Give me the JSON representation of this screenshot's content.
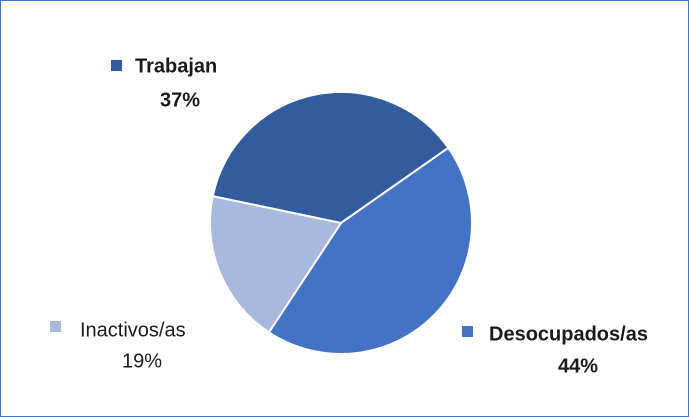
{
  "chart_data": {
    "type": "pie",
    "categories": [
      "Trabajan",
      "Desocupados/as",
      "Inactivos/as"
    ],
    "values": [
      37,
      44,
      19
    ],
    "value_labels": [
      "37%",
      "44%",
      "19%"
    ],
    "colors": [
      "#335c9e",
      "#4472c4",
      "#a9b8dd"
    ]
  }
}
